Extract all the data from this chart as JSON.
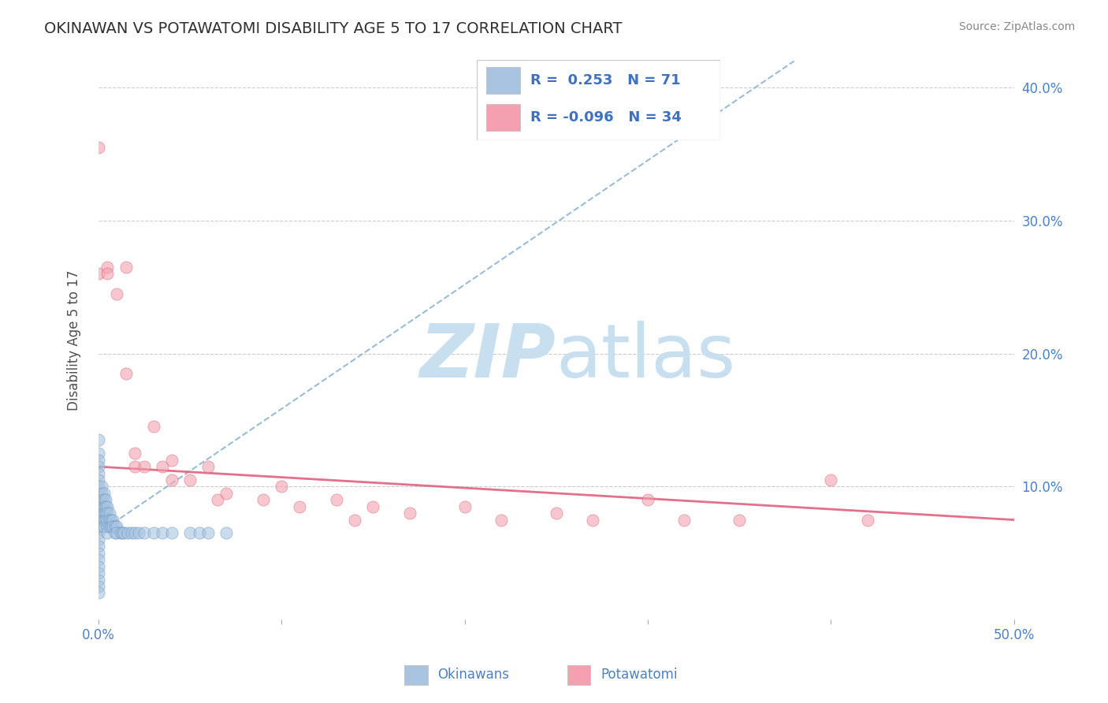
{
  "title": "OKINAWAN VS POTAWATOMI DISABILITY AGE 5 TO 17 CORRELATION CHART",
  "source": "Source: ZipAtlas.com",
  "ylabel": "Disability Age 5 to 17",
  "xlim": [
    0.0,
    0.5
  ],
  "ylim": [
    0.0,
    0.42
  ],
  "xticks": [
    0.0,
    0.1,
    0.2,
    0.3,
    0.4,
    0.5
  ],
  "xticklabels": [
    "0.0%",
    "",
    "",
    "",
    "",
    "50.0%"
  ],
  "yticks": [
    0.0,
    0.1,
    0.2,
    0.3,
    0.4
  ],
  "right_yticklabels": [
    "10.0%",
    "20.0%",
    "30.0%",
    "40.0%"
  ],
  "R_okinawan": 0.253,
  "N_okinawan": 71,
  "R_potawatomi": -0.096,
  "N_potawatomi": 34,
  "okinawan_color": "#a8c4e0",
  "okinawan_edge": "#6090c0",
  "potawatomi_color": "#f4a0b0",
  "potawatomi_edge": "#d06070",
  "trendline_okinawan_color": "#8ab0d0",
  "trendline_potawatomi_color": "#e06080",
  "watermark_zip_color": "#c8dff0",
  "watermark_atlas_color": "#c8dff0",
  "background_color": "#ffffff",
  "grid_color": "#cccccc",
  "title_color": "#303030",
  "axis_label_color": "#505050",
  "tick_label_color": "#5080c0",
  "legend_r_color": "#4070c0",
  "legend_box_edge": "#cccccc",
  "okinawan_points_x": [
    0.0,
    0.0,
    0.0,
    0.0,
    0.0,
    0.0,
    0.0,
    0.0,
    0.0,
    0.0,
    0.0,
    0.0,
    0.0,
    0.0,
    0.0,
    0.0,
    0.0,
    0.0,
    0.0,
    0.0,
    0.0,
    0.0,
    0.0,
    0.002,
    0.002,
    0.002,
    0.002,
    0.002,
    0.002,
    0.002,
    0.003,
    0.003,
    0.003,
    0.003,
    0.003,
    0.003,
    0.004,
    0.004,
    0.004,
    0.004,
    0.005,
    0.005,
    0.005,
    0.005,
    0.005,
    0.006,
    0.006,
    0.006,
    0.007,
    0.007,
    0.008,
    0.008,
    0.009,
    0.009,
    0.01,
    0.01,
    0.012,
    0.013,
    0.014,
    0.016,
    0.018,
    0.02,
    0.022,
    0.025,
    0.03,
    0.035,
    0.04,
    0.05,
    0.055,
    0.06,
    0.07
  ],
  "okinawan_points_y": [
    0.135,
    0.125,
    0.12,
    0.115,
    0.11,
    0.105,
    0.1,
    0.095,
    0.09,
    0.085,
    0.08,
    0.075,
    0.07,
    0.065,
    0.06,
    0.055,
    0.05,
    0.045,
    0.04,
    0.035,
    0.03,
    0.025,
    0.02,
    0.1,
    0.095,
    0.09,
    0.085,
    0.08,
    0.075,
    0.07,
    0.095,
    0.09,
    0.085,
    0.08,
    0.075,
    0.07,
    0.09,
    0.085,
    0.08,
    0.075,
    0.085,
    0.08,
    0.075,
    0.07,
    0.065,
    0.08,
    0.075,
    0.07,
    0.075,
    0.07,
    0.075,
    0.07,
    0.07,
    0.065,
    0.07,
    0.065,
    0.065,
    0.065,
    0.065,
    0.065,
    0.065,
    0.065,
    0.065,
    0.065,
    0.065,
    0.065,
    0.065,
    0.065,
    0.065,
    0.065,
    0.065
  ],
  "potawatomi_points_x": [
    0.0,
    0.0,
    0.005,
    0.005,
    0.01,
    0.015,
    0.015,
    0.02,
    0.02,
    0.025,
    0.03,
    0.035,
    0.04,
    0.04,
    0.05,
    0.06,
    0.065,
    0.07,
    0.09,
    0.1,
    0.11,
    0.13,
    0.14,
    0.15,
    0.17,
    0.2,
    0.22,
    0.25,
    0.27,
    0.3,
    0.32,
    0.35,
    0.4,
    0.42
  ],
  "potawatomi_points_y": [
    0.355,
    0.26,
    0.265,
    0.26,
    0.245,
    0.265,
    0.185,
    0.125,
    0.115,
    0.115,
    0.145,
    0.115,
    0.12,
    0.105,
    0.105,
    0.115,
    0.09,
    0.095,
    0.09,
    0.1,
    0.085,
    0.09,
    0.075,
    0.085,
    0.08,
    0.085,
    0.075,
    0.08,
    0.075,
    0.09,
    0.075,
    0.075,
    0.105,
    0.075
  ],
  "trendline_ok_x0": 0.0,
  "trendline_ok_y0": 0.065,
  "trendline_ok_x1": 0.38,
  "trendline_ok_y1": 0.42,
  "trendline_pot_x0": 0.0,
  "trendline_pot_y0": 0.115,
  "trendline_pot_x1": 0.5,
  "trendline_pot_y1": 0.075
}
